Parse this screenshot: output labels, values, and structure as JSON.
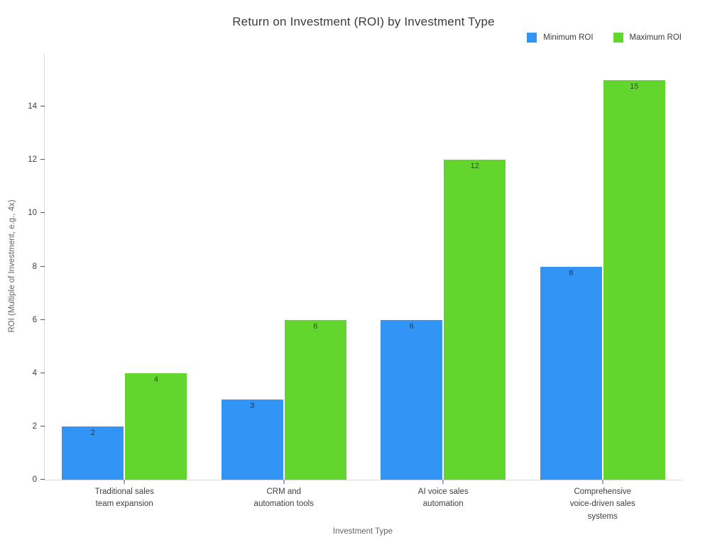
{
  "chart_data": {
    "type": "bar",
    "title": "Return on Investment (ROI) by Investment Type",
    "xlabel": "Investment Type",
    "ylabel": "ROI (Multiple of Investment, e.g., 4x)",
    "categories": [
      "Traditional sales\nteam expansion",
      "CRM and\nautomation tools",
      "AI voice sales\nautomation",
      "Comprehensive\nvoice-driven sales\nsystems"
    ],
    "series": [
      {
        "name": "Minimum ROI",
        "color": "#3295f5",
        "values": [
          2,
          3,
          6,
          8
        ]
      },
      {
        "name": "Maximum ROI",
        "color": "#63d62e",
        "values": [
          4,
          6,
          12,
          15
        ]
      }
    ],
    "ylim": [
      0,
      16
    ],
    "yticks": [
      0,
      2,
      4,
      6,
      8,
      10,
      12,
      14
    ],
    "grid": false,
    "legend_position": "top-right",
    "value_labels": "inside-top"
  }
}
